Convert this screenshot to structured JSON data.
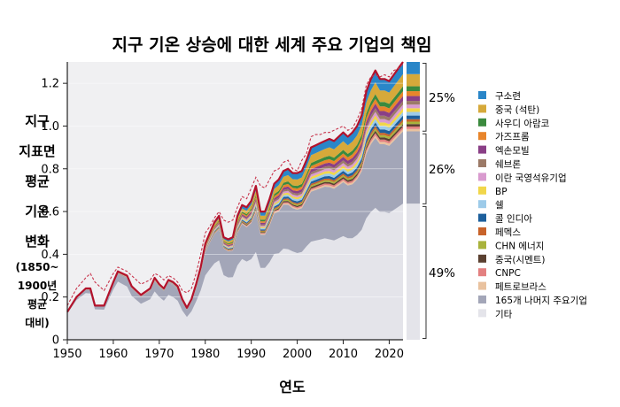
{
  "chart_data": {
    "type": "area",
    "title": "지구 기온 상승에 대한 세계 주요 기업의 책임",
    "xlabel": "연도",
    "ylabel_lines": [
      "지구",
      "지표면",
      "평균",
      "기온",
      "변화"
    ],
    "ylabel_note_lines": [
      "(1850~",
      "1900년",
      "평균",
      "대비)"
    ],
    "xlim": [
      1950,
      2023
    ],
    "ylim": [
      0,
      1.3
    ],
    "x_ticks": [
      1950,
      1960,
      1970,
      1980,
      1990,
      2000,
      2010,
      2020
    ],
    "y_ticks": [
      0,
      0.2,
      0.4,
      0.6,
      0.8,
      1.0,
      1.2
    ],
    "y_tick_labels": [
      "0",
      "0.2",
      "0.4",
      "0.6",
      "0.8",
      "1.0",
      "1.2"
    ],
    "x": [
      1950,
      1952,
      1954,
      1955,
      1956,
      1958,
      1960,
      1961,
      1962,
      1963,
      1964,
      1966,
      1968,
      1969,
      1970,
      1971,
      1972,
      1973,
      1974,
      1975,
      1976,
      1977,
      1978,
      1979,
      1980,
      1981,
      1982,
      1983,
      1984,
      1985,
      1986,
      1987,
      1988,
      1989,
      1990,
      1991,
      1992,
      1993,
      1994,
      1995,
      1996,
      1997,
      1998,
      1999,
      2000,
      2001,
      2002,
      2003,
      2004,
      2005,
      2006,
      2007,
      2008,
      2009,
      2010,
      2011,
      2012,
      2013,
      2014,
      2015,
      2016,
      2017,
      2018,
      2019,
      2020,
      2021,
      2022,
      2023
    ],
    "total": [
      0.13,
      0.2,
      0.24,
      0.24,
      0.16,
      0.16,
      0.27,
      0.32,
      0.31,
      0.3,
      0.25,
      0.21,
      0.24,
      0.29,
      0.26,
      0.24,
      0.28,
      0.27,
      0.25,
      0.19,
      0.15,
      0.19,
      0.26,
      0.34,
      0.45,
      0.5,
      0.55,
      0.58,
      0.48,
      0.47,
      0.48,
      0.58,
      0.63,
      0.62,
      0.65,
      0.72,
      0.6,
      0.6,
      0.66,
      0.73,
      0.75,
      0.79,
      0.8,
      0.78,
      0.78,
      0.79,
      0.84,
      0.9,
      0.91,
      0.92,
      0.93,
      0.94,
      0.93,
      0.95,
      0.97,
      0.95,
      0.97,
      1.0,
      1.05,
      1.16,
      1.22,
      1.26,
      1.22,
      1.22,
      1.21,
      1.24,
      1.27,
      1.3
    ],
    "dashed_line": [
      0.16,
      0.24,
      0.29,
      0.31,
      0.27,
      0.23,
      0.31,
      0.34,
      0.33,
      0.32,
      0.3,
      0.26,
      0.28,
      0.31,
      0.3,
      0.28,
      0.3,
      0.29,
      0.27,
      0.23,
      0.22,
      0.24,
      0.31,
      0.4,
      0.5,
      0.53,
      0.57,
      0.6,
      0.56,
      0.55,
      0.56,
      0.62,
      0.67,
      0.66,
      0.71,
      0.76,
      0.72,
      0.71,
      0.75,
      0.79,
      0.8,
      0.83,
      0.84,
      0.8,
      0.79,
      0.84,
      0.87,
      0.95,
      0.96,
      0.96,
      0.97,
      0.97,
      0.98,
      0.99,
      1.0,
      0.98,
      0.99,
      1.03,
      1.08,
      1.19,
      1.23,
      1.24,
      1.23,
      1.24,
      1.23,
      1.26,
      1.27,
      1.29
    ],
    "other_fraction": [
      0.95,
      0.93,
      0.91,
      0.9,
      0.89,
      0.88,
      0.87,
      0.85,
      0.84,
      0.83,
      0.82,
      0.8,
      0.79,
      0.78,
      0.77,
      0.76,
      0.75,
      0.74,
      0.73,
      0.72,
      0.71,
      0.7,
      0.69,
      0.68,
      0.67,
      0.66,
      0.65,
      0.64,
      0.63,
      0.62,
      0.61,
      0.6,
      0.6,
      0.59,
      0.58,
      0.57,
      0.56,
      0.56,
      0.55,
      0.55,
      0.54,
      0.54,
      0.53,
      0.53,
      0.52,
      0.52,
      0.52,
      0.51,
      0.51,
      0.51,
      0.51,
      0.5,
      0.5,
      0.5,
      0.5,
      0.5,
      0.49,
      0.49,
      0.49,
      0.49,
      0.49,
      0.49,
      0.49,
      0.49,
      0.49,
      0.49,
      0.49,
      0.49
    ],
    "remaining_fraction": [
      0.04,
      0.05,
      0.06,
      0.07,
      0.08,
      0.09,
      0.1,
      0.11,
      0.12,
      0.13,
      0.14,
      0.15,
      0.16,
      0.17,
      0.18,
      0.19,
      0.2,
      0.21,
      0.21,
      0.22,
      0.22,
      0.23,
      0.23,
      0.24,
      0.24,
      0.25,
      0.25,
      0.25,
      0.26,
      0.26,
      0.26,
      0.26,
      0.26,
      0.26,
      0.26,
      0.26,
      0.26,
      0.26,
      0.26,
      0.26,
      0.26,
      0.26,
      0.26,
      0.26,
      0.26,
      0.26,
      0.26,
      0.26,
      0.26,
      0.26,
      0.26,
      0.26,
      0.26,
      0.26,
      0.26,
      0.26,
      0.26,
      0.26,
      0.26,
      0.26,
      0.26,
      0.26,
      0.26,
      0.26,
      0.26,
      0.26,
      0.26,
      0.26
    ],
    "series": [
      {
        "name": "구소련",
        "color": "#2a86c8",
        "weight": 5
      },
      {
        "name": "중국 (석탄)",
        "color": "#d6a93a",
        "weight": 5
      },
      {
        "name": "사우디 아람코",
        "color": "#3b8a3e",
        "weight": 2
      },
      {
        "name": "가즈프롬",
        "color": "#e8852b",
        "weight": 2
      },
      {
        "name": "엑손모빌",
        "color": "#8a3f86",
        "weight": 2
      },
      {
        "name": "쉐브론",
        "color": "#9c7a67",
        "weight": 1.5
      },
      {
        "name": "이란 국영석유기업",
        "color": "#d99bcf",
        "weight": 1.5
      },
      {
        "name": "BP",
        "color": "#f1d64a",
        "weight": 1.5
      },
      {
        "name": "쉘",
        "color": "#9dcbe9",
        "weight": 1.5
      },
      {
        "name": "콜 인디아",
        "color": "#1d5f9c",
        "weight": 1.5
      },
      {
        "name": "페멕스",
        "color": "#c8632a",
        "weight": 1
      },
      {
        "name": "CHN 에너지",
        "color": "#a9b33c",
        "weight": 1
      },
      {
        "name": "중국(시멘트)",
        "color": "#5a4030",
        "weight": 1
      },
      {
        "name": "CNPC",
        "color": "#e38080",
        "weight": 1
      },
      {
        "name": "페트로브라스",
        "color": "#e9c29f",
        "weight": 1
      },
      {
        "name": "165개 나머지 주요기업",
        "color": "#a3a6b8",
        "weight": 0
      },
      {
        "name": "기타",
        "color": "#e4e4ea",
        "weight": 0
      }
    ],
    "shares": [
      {
        "label": "25%",
        "from": 0.97,
        "to": 1.3
      },
      {
        "label": "26%",
        "from": 0.63,
        "to": 0.97
      },
      {
        "label": "49%",
        "from": 0.0,
        "to": 0.63
      }
    ],
    "legend_position": "right"
  }
}
